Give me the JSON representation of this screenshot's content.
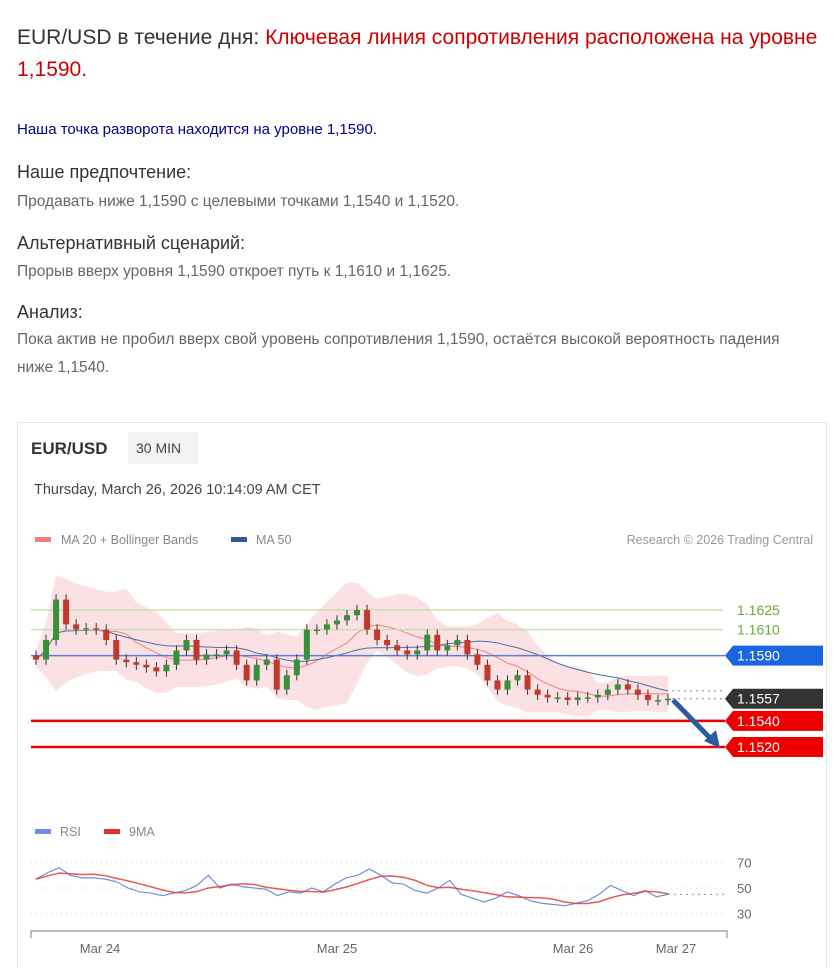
{
  "header": {
    "title_prefix": "EUR/USD в течение дня: ",
    "title_highlight": "Ключевая линия сопротивления расположена на уровне 1,1590."
  },
  "pivot": "Наша точка разворота находится на уровне 1,1590.",
  "sections": [
    {
      "heading": "Наше предпочтение:",
      "text": "Продавать ниже 1,1590 с целевыми точками 1,1540 и 1,1520."
    },
    {
      "heading": "Альтернативный сценарий:",
      "text": "Прорыв вверх уровня 1,1590 откроет путь к 1,1610 и 1,1625."
    },
    {
      "heading": "Анализ:",
      "text": "Пока актив не пробил вверх свой уровень сопротивления 1,1590, остаётся высокой вероятность падения ниже 1,1540."
    }
  ],
  "chart_data": {
    "type": "candlestick",
    "symbol": "EUR/USD",
    "timeframe": "30 MIN",
    "timestamp": "Thursday, March 26, 2026 10:14:09 AM CET",
    "legend": [
      "MA 20 + Bollinger Bands",
      "MA 50"
    ],
    "credit": "Research © 2026 Trading Central",
    "x_ticks": [
      "Mar 24",
      "Mar 25",
      "Mar 26",
      "Mar 27"
    ],
    "closes": [
      1.1587,
      1.1602,
      1.1633,
      1.1614,
      1.161,
      1.1611,
      1.161,
      1.1602,
      1.1587,
      1.1585,
      1.1583,
      1.1581,
      1.1578,
      1.1583,
      1.1594,
      1.1602,
      1.1587,
      1.1591,
      1.1591,
      1.1594,
      1.1583,
      1.1571,
      1.1583,
      1.1587,
      1.1564,
      1.1575,
      1.1587,
      1.161,
      1.161,
      1.1614,
      1.1617,
      1.1621,
      1.1625,
      1.161,
      1.1602,
      1.1598,
      1.1594,
      1.1591,
      1.1594,
      1.1606,
      1.1594,
      1.1598,
      1.1602,
      1.1591,
      1.1583,
      1.1571,
      1.1564,
      1.1571,
      1.1575,
      1.1564,
      1.156,
      1.1558,
      1.1558,
      1.1556,
      1.1558,
      1.1558,
      1.156,
      1.1564,
      1.1568,
      1.1564,
      1.156,
      1.1556,
      1.1556,
      1.1557
    ],
    "levels": [
      {
        "value": "1.1625",
        "color": "#6aaa3a",
        "style": "line"
      },
      {
        "value": "1.1610",
        "color": "#6aaa3a",
        "style": "line"
      },
      {
        "value": "1.1590",
        "color": "#1a66e0",
        "style": "tag"
      },
      {
        "value": "1.1557",
        "color": "#333333",
        "style": "tag"
      },
      {
        "value": "1.1540",
        "color": "#ee0000",
        "style": "tag"
      },
      {
        "value": "1.1520",
        "color": "#ee0000",
        "style": "tag"
      }
    ],
    "rsi": {
      "legend": [
        "RSI",
        "9MA"
      ],
      "ticks": [
        "70",
        "50",
        "30"
      ],
      "values": [
        57,
        62,
        66,
        60,
        58,
        58,
        57,
        55,
        50,
        47,
        46,
        44,
        46,
        48,
        52,
        60,
        50,
        53,
        51,
        50,
        49,
        44,
        47,
        46,
        50,
        47,
        53,
        58,
        60,
        65,
        60,
        54,
        53,
        48,
        46,
        50,
        56,
        45,
        42,
        39,
        42,
        47,
        44,
        40,
        38,
        37,
        36,
        38,
        40,
        45,
        52,
        48,
        44,
        48,
        43,
        45
      ]
    },
    "colors": {
      "bull": "#3a8f3a",
      "bear": "#c0392b",
      "bands": "#fadadd",
      "ma20": "#f08080",
      "ma50": "#4a6fa5",
      "rsi": "#6f8fdc",
      "rsi_ma": "#e03030"
    }
  }
}
